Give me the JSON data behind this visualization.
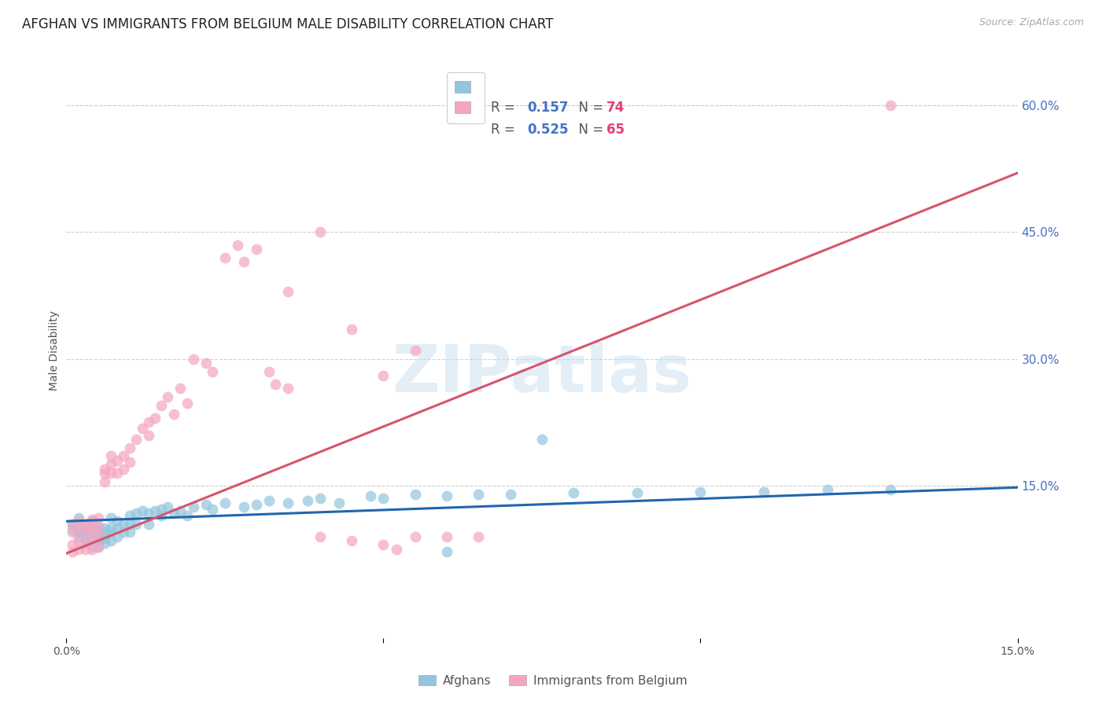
{
  "title": "AFGHAN VS IMMIGRANTS FROM BELGIUM MALE DISABILITY CORRELATION CHART",
  "source": "Source: ZipAtlas.com",
  "ylabel": "Male Disability",
  "xlim": [
    0.0,
    0.15
  ],
  "ylim": [
    -0.03,
    0.65
  ],
  "right_yticks": [
    0.0,
    0.15,
    0.3,
    0.45,
    0.6
  ],
  "right_ytick_labels": [
    "",
    "15.0%",
    "30.0%",
    "45.0%",
    "60.0%"
  ],
  "xticks": [
    0.0,
    0.05,
    0.1,
    0.15
  ],
  "xtick_labels": [
    "0.0%",
    "",
    "",
    "15.0%"
  ],
  "grid_color": "#d0d0d0",
  "background_color": "#ffffff",
  "legend_R1": "0.157",
  "legend_N1": "74",
  "legend_R2": "0.525",
  "legend_N2": "65",
  "color_blue": "#92c5de",
  "color_pink": "#f4a6c0",
  "blue_line_color": "#2166ac",
  "pink_line_color": "#d6556e",
  "blue_scatter_x": [
    0.001,
    0.001,
    0.002,
    0.002,
    0.002,
    0.002,
    0.003,
    0.003,
    0.003,
    0.003,
    0.003,
    0.004,
    0.004,
    0.004,
    0.004,
    0.004,
    0.005,
    0.005,
    0.005,
    0.005,
    0.005,
    0.006,
    0.006,
    0.006,
    0.006,
    0.007,
    0.007,
    0.007,
    0.007,
    0.008,
    0.008,
    0.008,
    0.009,
    0.009,
    0.01,
    0.01,
    0.01,
    0.011,
    0.011,
    0.012,
    0.013,
    0.013,
    0.014,
    0.015,
    0.015,
    0.016,
    0.017,
    0.018,
    0.019,
    0.02,
    0.022,
    0.023,
    0.025,
    0.028,
    0.03,
    0.032,
    0.035,
    0.038,
    0.04,
    0.043,
    0.048,
    0.05,
    0.055,
    0.06,
    0.065,
    0.07,
    0.08,
    0.09,
    0.1,
    0.11,
    0.12,
    0.13,
    0.075,
    0.06
  ],
  "blue_scatter_y": [
    0.105,
    0.098,
    0.112,
    0.095,
    0.1,
    0.09,
    0.105,
    0.1,
    0.095,
    0.088,
    0.082,
    0.1,
    0.108,
    0.095,
    0.085,
    0.078,
    0.102,
    0.097,
    0.092,
    0.085,
    0.078,
    0.1,
    0.095,
    0.088,
    0.082,
    0.1,
    0.112,
    0.095,
    0.085,
    0.108,
    0.1,
    0.09,
    0.105,
    0.095,
    0.115,
    0.105,
    0.095,
    0.118,
    0.105,
    0.12,
    0.118,
    0.105,
    0.12,
    0.122,
    0.115,
    0.125,
    0.118,
    0.12,
    0.115,
    0.125,
    0.128,
    0.122,
    0.13,
    0.125,
    0.128,
    0.132,
    0.13,
    0.132,
    0.135,
    0.13,
    0.138,
    0.135,
    0.14,
    0.138,
    0.14,
    0.14,
    0.142,
    0.142,
    0.143,
    0.143,
    0.145,
    0.145,
    0.205,
    0.072
  ],
  "pink_scatter_x": [
    0.001,
    0.001,
    0.001,
    0.001,
    0.002,
    0.002,
    0.002,
    0.002,
    0.003,
    0.003,
    0.003,
    0.003,
    0.004,
    0.004,
    0.004,
    0.004,
    0.005,
    0.005,
    0.005,
    0.005,
    0.006,
    0.006,
    0.006,
    0.007,
    0.007,
    0.007,
    0.008,
    0.008,
    0.009,
    0.009,
    0.01,
    0.01,
    0.011,
    0.012,
    0.013,
    0.013,
    0.014,
    0.015,
    0.016,
    0.017,
    0.018,
    0.019,
    0.02,
    0.022,
    0.023,
    0.025,
    0.027,
    0.028,
    0.03,
    0.032,
    0.033,
    0.035,
    0.04,
    0.045,
    0.05,
    0.052,
    0.045,
    0.05,
    0.055,
    0.06,
    0.065,
    0.04,
    0.035,
    0.055,
    0.13
  ],
  "pink_scatter_y": [
    0.105,
    0.095,
    0.08,
    0.072,
    0.108,
    0.098,
    0.085,
    0.075,
    0.105,
    0.098,
    0.085,
    0.075,
    0.11,
    0.1,
    0.09,
    0.075,
    0.112,
    0.102,
    0.092,
    0.078,
    0.155,
    0.165,
    0.17,
    0.175,
    0.185,
    0.165,
    0.18,
    0.165,
    0.185,
    0.17,
    0.195,
    0.178,
    0.205,
    0.218,
    0.225,
    0.21,
    0.23,
    0.245,
    0.255,
    0.235,
    0.265,
    0.248,
    0.3,
    0.295,
    0.285,
    0.42,
    0.435,
    0.415,
    0.43,
    0.285,
    0.27,
    0.265,
    0.09,
    0.085,
    0.08,
    0.075,
    0.335,
    0.28,
    0.31,
    0.09,
    0.09,
    0.45,
    0.38,
    0.09,
    0.6
  ],
  "blue_line_x": [
    0.0,
    0.15
  ],
  "blue_line_y": [
    0.108,
    0.148
  ],
  "pink_line_x": [
    0.0,
    0.15
  ],
  "pink_line_y": [
    0.07,
    0.52
  ],
  "watermark": "ZIPatlas",
  "title_fontsize": 12,
  "axis_label_fontsize": 10,
  "tick_fontsize": 10,
  "legend_fontsize": 12
}
